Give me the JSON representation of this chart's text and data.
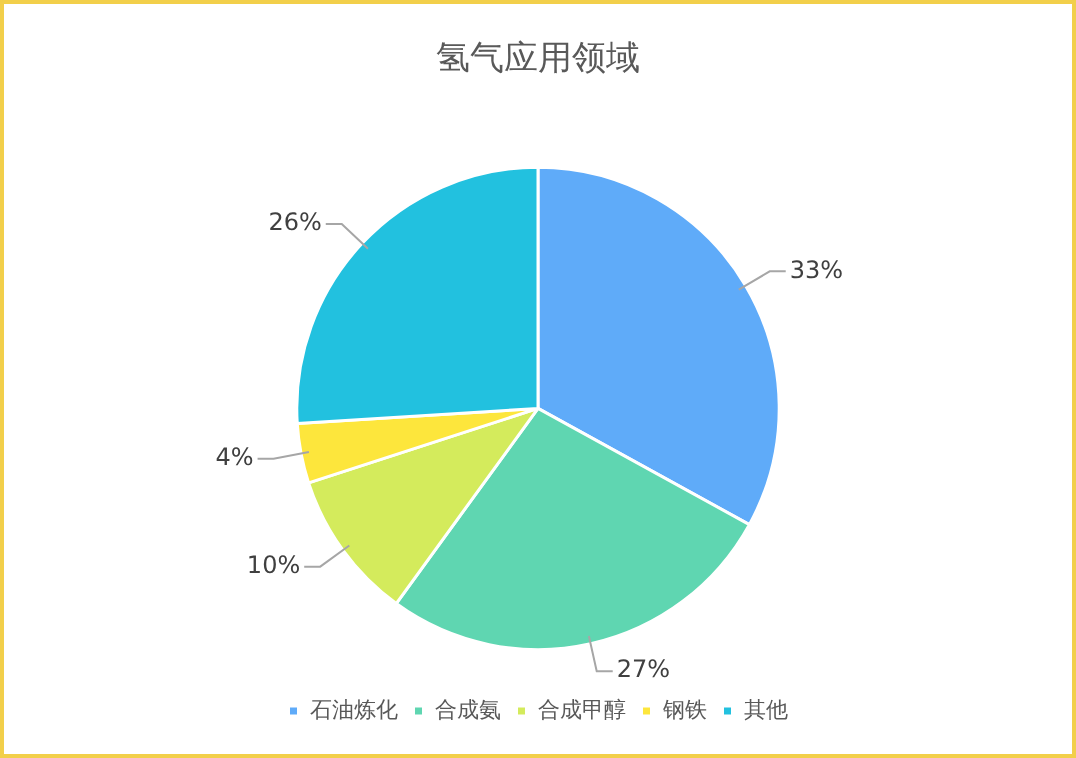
{
  "chart_data": {
    "type": "pie",
    "title": "氢气应用领域",
    "categories": [
      "石油炼化",
      "合成氨",
      "合成甲醇",
      "钢铁",
      "其他"
    ],
    "values": [
      33,
      27,
      10,
      4,
      26
    ],
    "colors": [
      "#5fabf9",
      "#5fd6b1",
      "#d4eb5c",
      "#fde63c",
      "#22c1df"
    ],
    "value_labels": [
      "33%",
      "27%",
      "10%",
      "4%",
      "26%"
    ],
    "legend": "bottom"
  }
}
